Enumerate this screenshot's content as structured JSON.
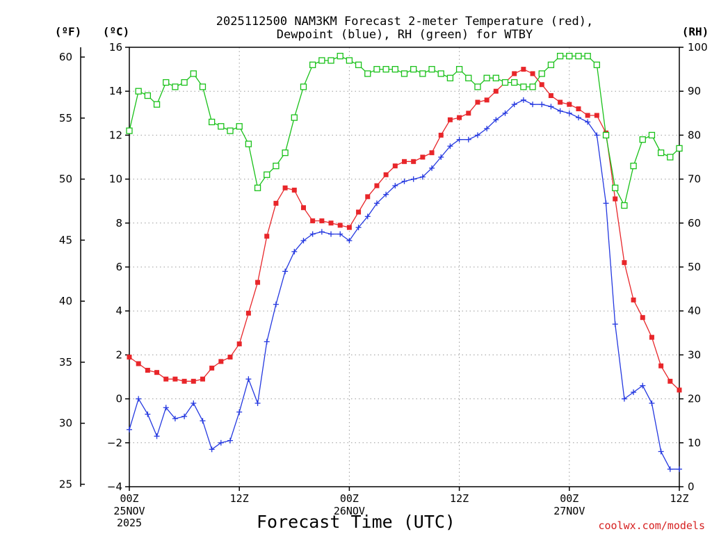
{
  "chart_data": {
    "type": "line",
    "title_line1": "2025112500 NAM3KM Forecast 2-meter Temperature (red),",
    "title_line2": "Dewpoint (blue), RH (green) for WTBY",
    "unit_left_f": "(ºF)",
    "unit_left_c": "(ºC)",
    "unit_right": "(RH)",
    "xlabel": "Forecast Time (UTC)",
    "credit": "coolwx.com/models",
    "x_ticks": [
      {
        "hour": 0,
        "label": "00Z",
        "sub1": "25NOV",
        "sub2": "2025"
      },
      {
        "hour": 12,
        "label": "12Z",
        "sub1": "",
        "sub2": ""
      },
      {
        "hour": 24,
        "label": "00Z",
        "sub1": "26NOV",
        "sub2": ""
      },
      {
        "hour": 36,
        "label": "12Z",
        "sub1": "",
        "sub2": ""
      },
      {
        "hour": 48,
        "label": "00Z",
        "sub1": "27NOV",
        "sub2": ""
      },
      {
        "hour": 60,
        "label": "12Z",
        "sub1": "",
        "sub2": ""
      }
    ],
    "xlim": [
      0,
      60
    ],
    "celsius_axis": {
      "range": [
        -4,
        16
      ],
      "ticks": [
        "−4",
        "−2",
        "0",
        "2",
        "4",
        "6",
        "8",
        "10",
        "12",
        "14",
        "16"
      ]
    },
    "fahrenheit_axis": {
      "range": [
        24.8,
        60.8
      ],
      "ticks": [
        "25",
        "30",
        "35",
        "40",
        "45",
        "50",
        "55",
        "60"
      ]
    },
    "rh_axis": {
      "range": [
        0,
        100
      ],
      "ticks": [
        "0",
        "10",
        "20",
        "30",
        "40",
        "50",
        "60",
        "70",
        "80",
        "90",
        "100"
      ]
    },
    "colors": {
      "temperature": "#e8262a",
      "dewpoint": "#2438e0",
      "rh": "#19c119",
      "grid": "#9a9a9a",
      "credit": "#d62020"
    },
    "series": [
      {
        "name": "Temperature",
        "unit": "C",
        "marker": "filled-square",
        "values": [
          1.9,
          1.6,
          1.3,
          1.2,
          0.9,
          0.9,
          0.8,
          0.8,
          0.9,
          1.4,
          1.7,
          1.9,
          2.5,
          3.9,
          5.3,
          7.4,
          8.9,
          9.6,
          9.5,
          8.7,
          8.1,
          8.1,
          8.0,
          7.9,
          7.8,
          8.5,
          9.2,
          9.7,
          10.2,
          10.6,
          10.8,
          10.8,
          11.0,
          11.2,
          12.0,
          12.7,
          12.8,
          13.0,
          13.5,
          13.6,
          14.0,
          14.4,
          14.8,
          15.0,
          14.8,
          14.3,
          13.8,
          13.5,
          13.4,
          13.2,
          12.9,
          12.9,
          12.1,
          9.1,
          6.2,
          4.5,
          3.7,
          2.8,
          1.5,
          0.8,
          0.4
        ]
      },
      {
        "name": "Dewpoint",
        "unit": "C",
        "marker": "plus",
        "values": [
          -1.4,
          0.0,
          -0.7,
          -1.7,
          -0.4,
          -0.9,
          -0.8,
          -0.2,
          -1.0,
          -2.3,
          -2.0,
          -1.9,
          -0.6,
          0.9,
          -0.2,
          2.6,
          4.3,
          5.8,
          6.7,
          7.2,
          7.5,
          7.6,
          7.5,
          7.5,
          7.2,
          7.8,
          8.3,
          8.9,
          9.3,
          9.7,
          9.9,
          10.0,
          10.1,
          10.5,
          11.0,
          11.5,
          11.8,
          11.8,
          12.0,
          12.3,
          12.7,
          13.0,
          13.4,
          13.6,
          13.4,
          13.4,
          13.3,
          13.1,
          13.0,
          12.8,
          12.6,
          12.0,
          8.9,
          3.4,
          0.0,
          0.3,
          0.6,
          -0.2,
          -2.4,
          -3.2,
          -3.2
        ]
      },
      {
        "name": "RH",
        "unit": "%",
        "marker": "open-square",
        "values": [
          81,
          90,
          89,
          87,
          92,
          91,
          92,
          94,
          91,
          83,
          82,
          81,
          82,
          78,
          68,
          71,
          73,
          76,
          84,
          91,
          96,
          97,
          97,
          98,
          97,
          96,
          94,
          95,
          95,
          95,
          94,
          95,
          94,
          95,
          94,
          93,
          95,
          93,
          91,
          93,
          93,
          92,
          92,
          91,
          91,
          94,
          96,
          98,
          98,
          98,
          98,
          96,
          80,
          68,
          64,
          73,
          79,
          80,
          76,
          75,
          77
        ]
      }
    ]
  }
}
